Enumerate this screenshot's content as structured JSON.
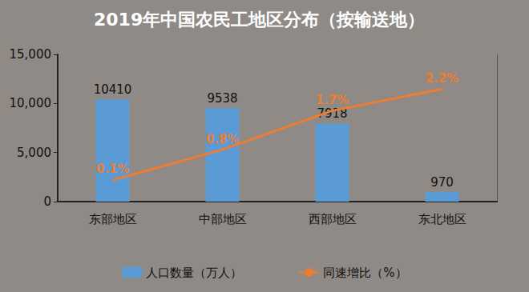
{
  "chart_data": {
    "type": "bar",
    "title": "2019年中国农民工地区分布（按输送地）",
    "categories": [
      "东部地区",
      "中部地区",
      "西部地区",
      "东北地区"
    ],
    "series": [
      {
        "name": "人口数量（万人）",
        "type": "bar",
        "color": "#5b9bd5",
        "values": [
          10410,
          9538,
          7918,
          970
        ]
      },
      {
        "name": "同速增比（%）",
        "type": "line",
        "color": "#ed7d31",
        "axis": "y2",
        "values": [
          0.1,
          0.8,
          1.7,
          2.2
        ],
        "value_labels": [
          "0.1%",
          "0.8%",
          "1.7%",
          "2.2%"
        ]
      }
    ],
    "ylim": [
      0,
      15000
    ],
    "yticks": [
      0,
      5000,
      10000,
      15000
    ],
    "y2lim": [
      -0.4,
      3
    ],
    "grid": false,
    "legend": "bottom",
    "data_labels": true
  }
}
